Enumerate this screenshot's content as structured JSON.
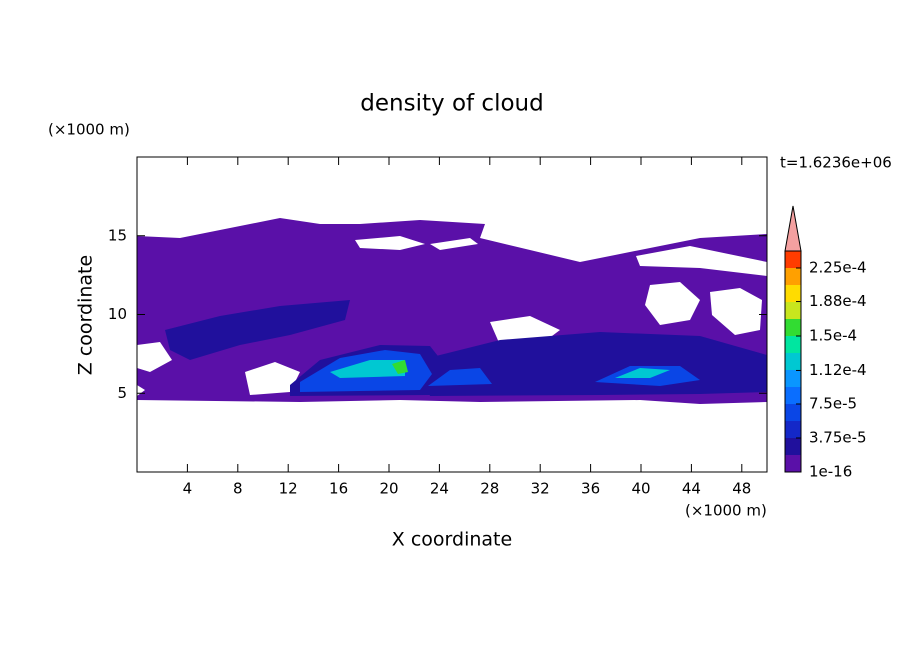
{
  "chart_data": {
    "type": "contour",
    "title": "density of cloud",
    "x_label": "X coordinate",
    "y_label": "Z coordinate",
    "x_unit": "(×1000 m)",
    "y_unit": "(×1000 m)",
    "annotation": "t=1.6236e+06",
    "xlim": [
      0,
      50
    ],
    "ylim": [
      0,
      20
    ],
    "xticks": [
      4,
      8,
      12,
      16,
      20,
      24,
      28,
      32,
      36,
      40,
      44,
      48
    ],
    "yticks": [
      5,
      10,
      15
    ],
    "colorbar": {
      "levels": [
        1e-16,
        1.875e-05,
        3.75e-05,
        5.625e-05,
        7.5e-05,
        9.375e-05,
        0.0001125,
        0.00013125,
        0.00015,
        0.00016875,
        0.0001875,
        0.00020625,
        0.000225,
        0.00024375
      ],
      "colors": [
        "#5a10a8",
        "#20109c",
        "#1428c8",
        "#0a46e6",
        "#0a6eff",
        "#0a96ff",
        "#00c8d2",
        "#00e6a0",
        "#32dc32",
        "#c8e61e",
        "#ffdc00",
        "#ffa000",
        "#ff3c00"
      ],
      "over_color": "#f4a0a0",
      "ticks": [
        1e-16,
        {
          "value": 3.75e-05,
          "label": "3.75e-5"
        },
        {
          "value": 7.5e-05,
          "label": "7.5e-5"
        },
        {
          "value": 0.000112,
          "label": "1.12e-4"
        },
        {
          "value": 0.00015,
          "label": "1.5e-4"
        },
        {
          "value": 0.000188,
          "label": "1.88e-4"
        },
        {
          "value": 0.000225,
          "label": "2.25e-4"
        }
      ]
    }
  }
}
